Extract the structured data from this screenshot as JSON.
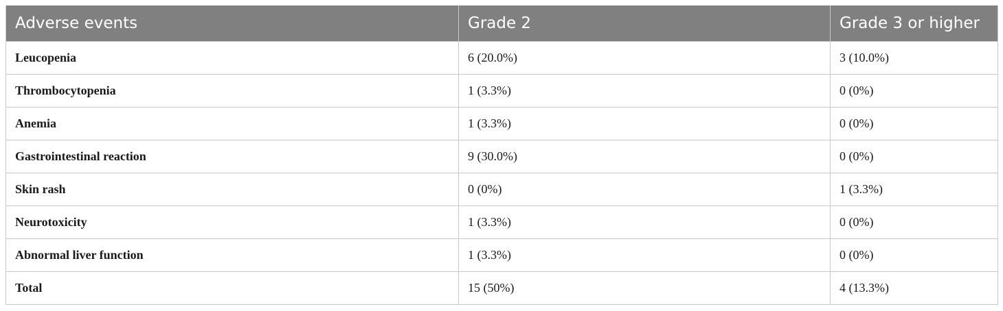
{
  "table": {
    "headers": [
      "Adverse events",
      "Grade 2",
      "Grade 3 or higher"
    ],
    "rows": [
      {
        "event": "Leucopenia",
        "grade2": "6 (20.0%)",
        "grade3": "3 (10.0%)"
      },
      {
        "event": "Thrombocytopenia",
        "grade2": "1 (3.3%)",
        "grade3": "0 (0%)"
      },
      {
        "event": "Anemia",
        "grade2": "1 (3.3%)",
        "grade3": "0 (0%)"
      },
      {
        "event": "Gastrointestinal reaction",
        "grade2": "9 (30.0%)",
        "grade3": "0 (0%)"
      },
      {
        "event": "Skin rash",
        "grade2": "0 (0%)",
        "grade3": "1 (3.3%)"
      },
      {
        "event": "Neurotoxicity",
        "grade2": "1 (3.3%)",
        "grade3": "0 (0%)"
      },
      {
        "event": "Abnormal liver function",
        "grade2": "1 (3.3%)",
        "grade3": "0 (0%)"
      },
      {
        "event": "Total",
        "grade2": "15 (50%)",
        "grade3": "4 (13.3%)"
      }
    ]
  },
  "colors": {
    "header_bg": "#808080",
    "header_text": "#ffffff",
    "border": "#c8c8c8"
  }
}
